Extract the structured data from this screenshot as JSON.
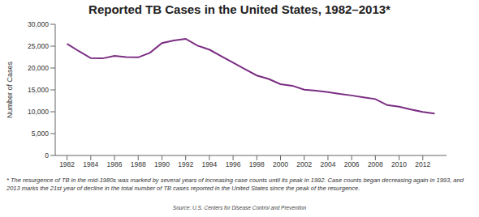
{
  "chart_data": {
    "type": "line",
    "title": "Reported TB Cases in the United States, 1982–2013*",
    "y_label": "Number of Cases",
    "x": [
      1982,
      1983,
      1984,
      1985,
      1986,
      1987,
      1988,
      1989,
      1990,
      1991,
      1992,
      1993,
      1994,
      1995,
      1996,
      1997,
      1998,
      1999,
      2000,
      2001,
      2002,
      2003,
      2004,
      2005,
      2006,
      2007,
      2008,
      2009,
      2010,
      2011,
      2012,
      2013
    ],
    "values": [
      25520,
      23846,
      22255,
      22201,
      22768,
      22517,
      22436,
      23495,
      25701,
      26283,
      26673,
      25102,
      24206,
      22726,
      21210,
      19751,
      18287,
      17500,
      16308,
      15945,
      15055,
      14835,
      14499,
      14065,
      13727,
      13282,
      12895,
      11520,
      11161,
      10510,
      9945,
      9582
    ],
    "color": "#7b2d83",
    "xlim": [
      1981,
      2014
    ],
    "xticks": [
      1982,
      1984,
      1986,
      1988,
      1990,
      1992,
      1994,
      1996,
      1998,
      2000,
      2002,
      2004,
      2006,
      2008,
      2010,
      2012
    ],
    "ylim": [
      0,
      30000
    ],
    "yticks": [
      0,
      {
        "value": 5000,
        "label": "5,000"
      },
      {
        "value": 10000,
        "label": "10,000"
      },
      {
        "value": 15000,
        "label": "15,000"
      },
      {
        "value": 20000,
        "label": "20,000"
      },
      {
        "value": 25000,
        "label": "25,000"
      },
      {
        "value": 30000,
        "label": "30,000"
      }
    ],
    "grid": false,
    "footnote": "* The resurgence of TB in the mid-1980s was marked by several years of increasing case counts until its peak in 1992. Case counts began decreasing again in 1993, and 2013 marks the 21st year of decline in the total number of TB cases reported in the United States since the peak of the resurgence.",
    "source": "Source: U.S. Centers for Disease Control and Prevention"
  }
}
